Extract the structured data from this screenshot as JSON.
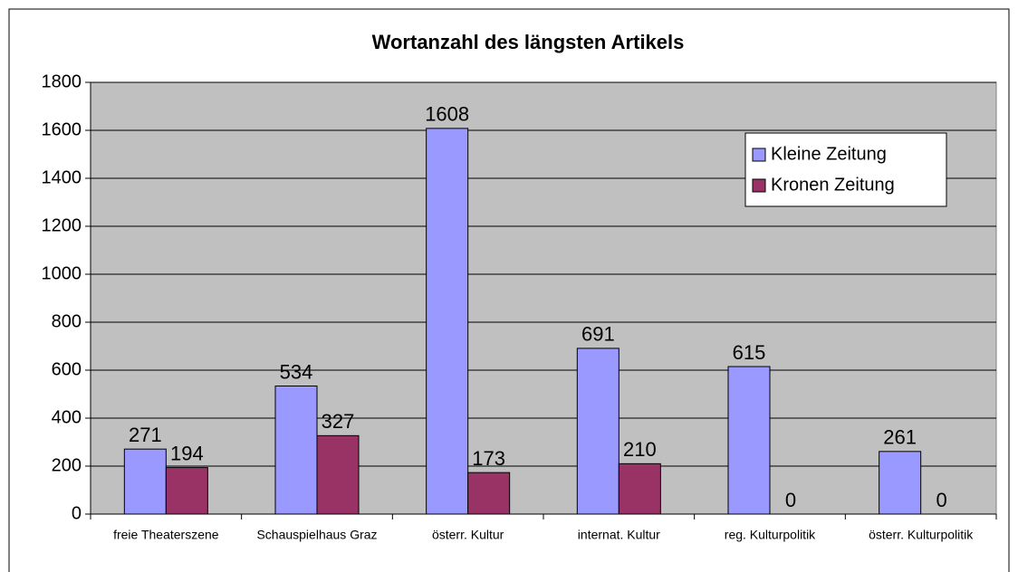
{
  "chart_data": {
    "type": "bar",
    "title": "Wortanzahl des längsten Artikels",
    "categories": [
      "freie Theaterszene",
      "Schauspielhaus Graz",
      "österr. Kultur",
      "internat. Kultur",
      "reg. Kulturpolitik",
      "österr. Kulturpolitik"
    ],
    "series": [
      {
        "name": "Kleine Zeitung",
        "color": "#9999ff",
        "values": [
          271,
          534,
          1608,
          691,
          615,
          261
        ]
      },
      {
        "name": "Kronen Zeitung",
        "color": "#993366",
        "values": [
          194,
          327,
          173,
          210,
          0,
          0
        ]
      }
    ],
    "ylim": [
      0,
      1800
    ],
    "yticks": [
      0,
      200,
      400,
      600,
      800,
      1000,
      1200,
      1400,
      1600,
      1800
    ],
    "grid": true,
    "legend": "upper right",
    "plot_background": "#c0c0c0"
  }
}
